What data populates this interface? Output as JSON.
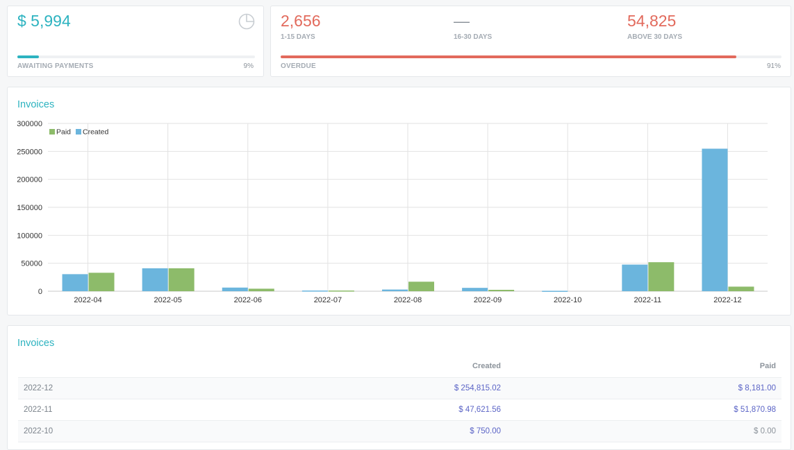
{
  "awaiting": {
    "amount": "$ 5,994",
    "label": "AWAITING PAYMENTS",
    "percent_text": "9%",
    "percent": 9,
    "color": "#2db3c0"
  },
  "overdue": {
    "buckets": [
      {
        "value": "2,656",
        "label": "1-15 DAYS"
      },
      {
        "value": "—",
        "label": "16-30 DAYS"
      },
      {
        "value": "54,825",
        "label": "ABOVE 30 DAYS"
      }
    ],
    "label": "OVERDUE",
    "percent_text": "91%",
    "percent": 91,
    "color": "#e26a5c"
  },
  "chart_card": {
    "title": "Invoices"
  },
  "table_card": {
    "title": "Invoices",
    "columns": [
      "",
      "Created",
      "Paid"
    ],
    "rows": [
      {
        "month": "2022-12",
        "created": "$ 254,815.02",
        "paid": "$ 8,181.00"
      },
      {
        "month": "2022-11",
        "created": "$ 47,621.56",
        "paid": "$ 51,870.98"
      },
      {
        "month": "2022-10",
        "created": "$ 750.00",
        "paid": "$ 0.00"
      }
    ]
  },
  "chart_data": {
    "type": "bar",
    "categories": [
      "2022-04",
      "2022-05",
      "2022-06",
      "2022-07",
      "2022-08",
      "2022-09",
      "2022-10",
      "2022-11",
      "2022-12"
    ],
    "series": [
      {
        "name": "Created",
        "color": "#6bb5dd",
        "values": [
          30500,
          41000,
          6500,
          1200,
          3000,
          6000,
          750,
          47621.56,
          254815.02
        ]
      },
      {
        "name": "Paid",
        "color": "#8dbb6a",
        "values": [
          33000,
          41000,
          4500,
          1200,
          17000,
          2500,
          0,
          51870.98,
          8181
        ]
      }
    ],
    "legend": [
      {
        "name": "Paid",
        "color": "#8dbb6a"
      },
      {
        "name": "Created",
        "color": "#6bb5dd"
      }
    ],
    "legend_position": "top-left",
    "yticks": [
      "0",
      "50000",
      "100000",
      "150000",
      "200000",
      "250000",
      "300000"
    ],
    "ylim": [
      0,
      300000
    ],
    "grid": true
  }
}
